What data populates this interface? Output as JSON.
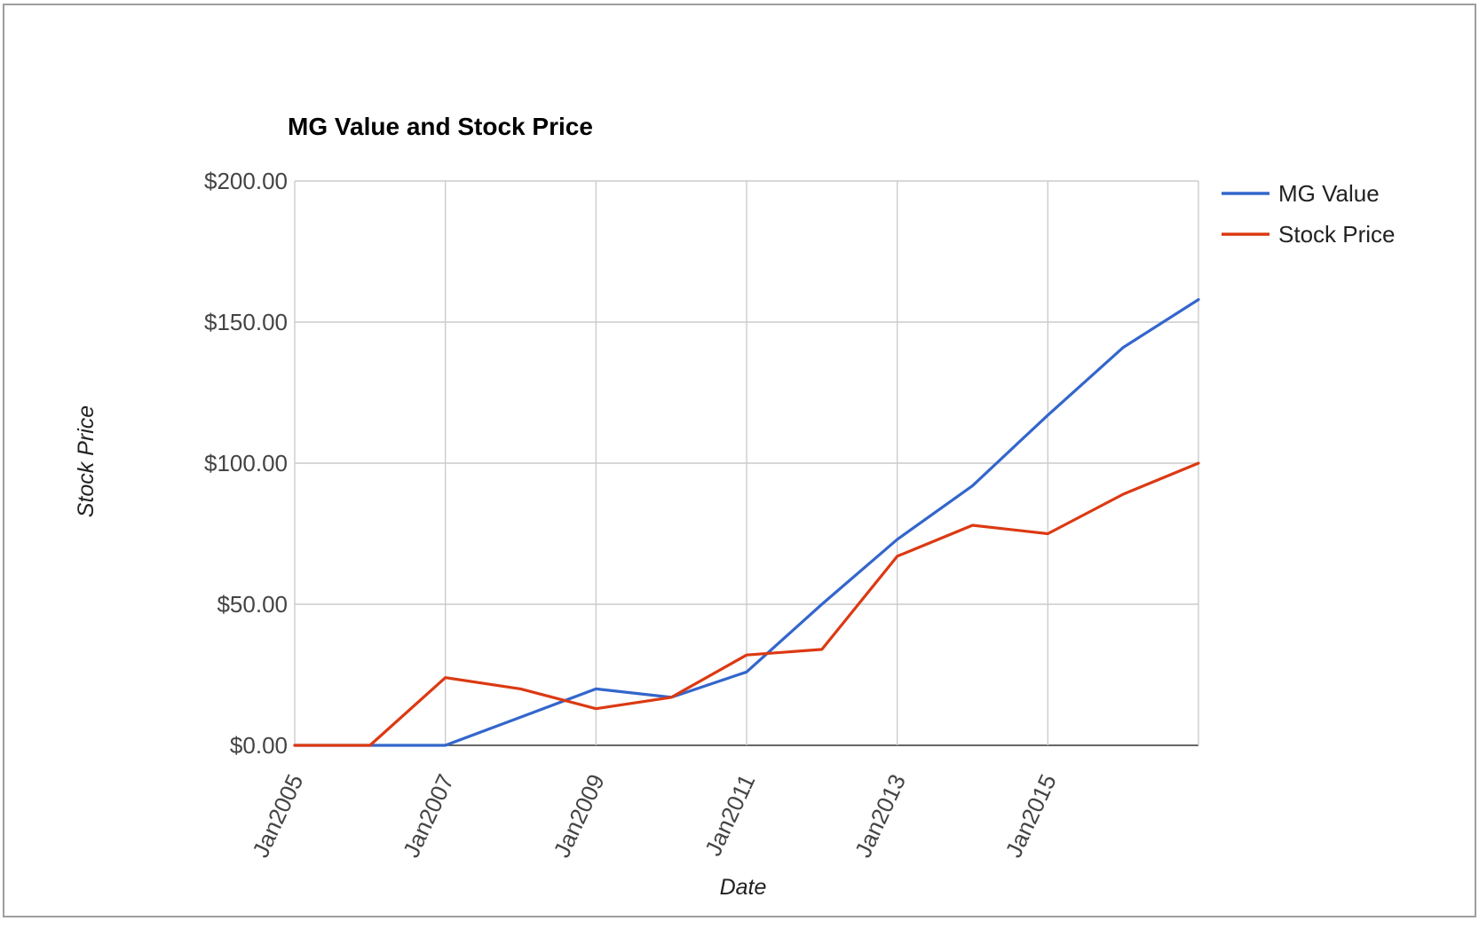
{
  "chart_data": {
    "type": "line",
    "title": "MG Value and Stock Price",
    "xlabel": "Date",
    "ylabel": "Stock Price",
    "x": [
      "2005-01",
      "2006-01",
      "2007-01",
      "2008-01",
      "2009-01",
      "2010-01",
      "2011-01",
      "2012-01",
      "2013-01",
      "2014-01",
      "2015-01",
      "2016-01",
      "2017-01"
    ],
    "x_ticks": [
      "Jan2005",
      "Jan2007",
      "Jan2009",
      "Jan2011",
      "Jan2013",
      "Jan2015"
    ],
    "x_tick_positions": [
      "2005-01",
      "2007-01",
      "2009-01",
      "2011-01",
      "2013-01",
      "2015-01"
    ],
    "xlim": [
      "2005-01",
      "2017-01"
    ],
    "ylim": [
      0,
      200
    ],
    "y_ticks": [
      0,
      50,
      100,
      150,
      200
    ],
    "y_tick_labels": [
      "$0.00",
      "$50.00",
      "$100.00",
      "$150.00",
      "$200.00"
    ],
    "grid": true,
    "legend_position": "top-right",
    "series": [
      {
        "name": "MG Value",
        "color": "#3366cc",
        "values": [
          0,
          0,
          0,
          10,
          20,
          17,
          26,
          50,
          73,
          92,
          117,
          141,
          158
        ]
      },
      {
        "name": "Stock Price",
        "color": "#dc3912",
        "values": [
          0,
          0,
          24,
          20,
          13,
          17,
          32,
          34,
          67,
          78,
          75,
          89,
          100
        ]
      }
    ]
  }
}
